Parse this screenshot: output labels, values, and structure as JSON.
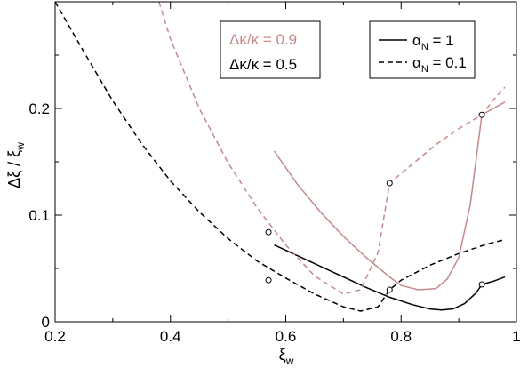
{
  "chart_data": {
    "type": "line",
    "xlabel": "ξ",
    "xlabel_sub": "w",
    "ylabel": "Δξ / ξ",
    "ylabel_sub": "w",
    "xlim": [
      0.2,
      1.0
    ],
    "ylim": [
      0,
      0.3
    ],
    "xticks": [
      0.2,
      0.4,
      0.6,
      0.8,
      1.0
    ],
    "xtick_labels": [
      "0.2",
      "0.4",
      "0.6",
      "0.8",
      "1"
    ],
    "yticks": [
      0,
      0.1,
      0.2
    ],
    "ytick_labels": [
      "0",
      "0.1",
      "0.2"
    ],
    "grid": false,
    "colors": {
      "black": "#000000",
      "pink": "#c48a8a"
    },
    "legend_kappa": [
      {
        "label": "Δκ/κ = 0.9",
        "color": "#c48a8a"
      },
      {
        "label": "Δκ/κ = 0.5",
        "color": "#000000"
      }
    ],
    "legend_alpha": [
      {
        "label_main": "α",
        "label_sub": "N",
        "label_rest": " = 1",
        "dash": "solid"
      },
      {
        "label_main": "α",
        "label_sub": "N",
        "label_rest": " = 0.1",
        "dash": "dashed"
      }
    ],
    "series": [
      {
        "color": "black",
        "dash": "dashed",
        "points": [
          [
            0.2,
            0.3
          ],
          [
            0.25,
            0.253
          ],
          [
            0.3,
            0.207
          ],
          [
            0.35,
            0.167
          ],
          [
            0.4,
            0.132
          ],
          [
            0.45,
            0.103
          ],
          [
            0.5,
            0.078
          ],
          [
            0.55,
            0.057
          ],
          [
            0.6,
            0.041
          ],
          [
            0.65,
            0.026
          ],
          [
            0.7,
            0.014
          ],
          [
            0.73,
            0.01
          ],
          [
            0.76,
            0.014
          ],
          [
            0.78,
            0.03
          ],
          [
            0.8,
            0.039
          ],
          [
            0.85,
            0.053
          ],
          [
            0.9,
            0.064
          ],
          [
            0.95,
            0.073
          ],
          [
            0.98,
            0.077
          ]
        ]
      },
      {
        "color": "black",
        "dash": "solid",
        "points": [
          [
            0.58,
            0.072
          ],
          [
            0.62,
            0.062
          ],
          [
            0.66,
            0.052
          ],
          [
            0.7,
            0.042
          ],
          [
            0.74,
            0.032
          ],
          [
            0.78,
            0.023
          ],
          [
            0.82,
            0.016
          ],
          [
            0.85,
            0.012
          ],
          [
            0.87,
            0.011
          ],
          [
            0.89,
            0.012
          ],
          [
            0.91,
            0.017
          ],
          [
            0.93,
            0.027
          ],
          [
            0.94,
            0.035
          ],
          [
            0.96,
            0.038
          ],
          [
            0.98,
            0.042
          ]
        ]
      },
      {
        "color": "pink",
        "dash": "dashed",
        "points": [
          [
            0.38,
            0.3
          ],
          [
            0.4,
            0.265
          ],
          [
            0.45,
            0.2
          ],
          [
            0.5,
            0.149
          ],
          [
            0.55,
            0.107
          ],
          [
            0.6,
            0.072
          ],
          [
            0.65,
            0.043
          ],
          [
            0.7,
            0.026
          ],
          [
            0.73,
            0.03
          ],
          [
            0.76,
            0.065
          ],
          [
            0.78,
            0.13
          ],
          [
            0.82,
            0.148
          ],
          [
            0.86,
            0.166
          ],
          [
            0.9,
            0.181
          ],
          [
            0.94,
            0.194
          ],
          [
            0.96,
            0.208
          ],
          [
            0.98,
            0.22
          ]
        ]
      },
      {
        "color": "pink",
        "dash": "solid",
        "points": [
          [
            0.58,
            0.16
          ],
          [
            0.62,
            0.129
          ],
          [
            0.66,
            0.103
          ],
          [
            0.7,
            0.08
          ],
          [
            0.74,
            0.06
          ],
          [
            0.78,
            0.042
          ],
          [
            0.8,
            0.034
          ],
          [
            0.83,
            0.03
          ],
          [
            0.86,
            0.031
          ],
          [
            0.88,
            0.04
          ],
          [
            0.9,
            0.06
          ],
          [
            0.92,
            0.11
          ],
          [
            0.94,
            0.194
          ],
          [
            0.96,
            0.2
          ],
          [
            0.98,
            0.206
          ]
        ]
      }
    ],
    "markers": [
      {
        "color": "black",
        "points": [
          [
            0.57,
            0.039
          ],
          [
            0.78,
            0.03
          ],
          [
            0.94,
            0.035
          ]
        ]
      },
      {
        "color": "pink",
        "points": [
          [
            0.57,
            0.084
          ],
          [
            0.78,
            0.13
          ],
          [
            0.94,
            0.194
          ]
        ]
      }
    ]
  }
}
